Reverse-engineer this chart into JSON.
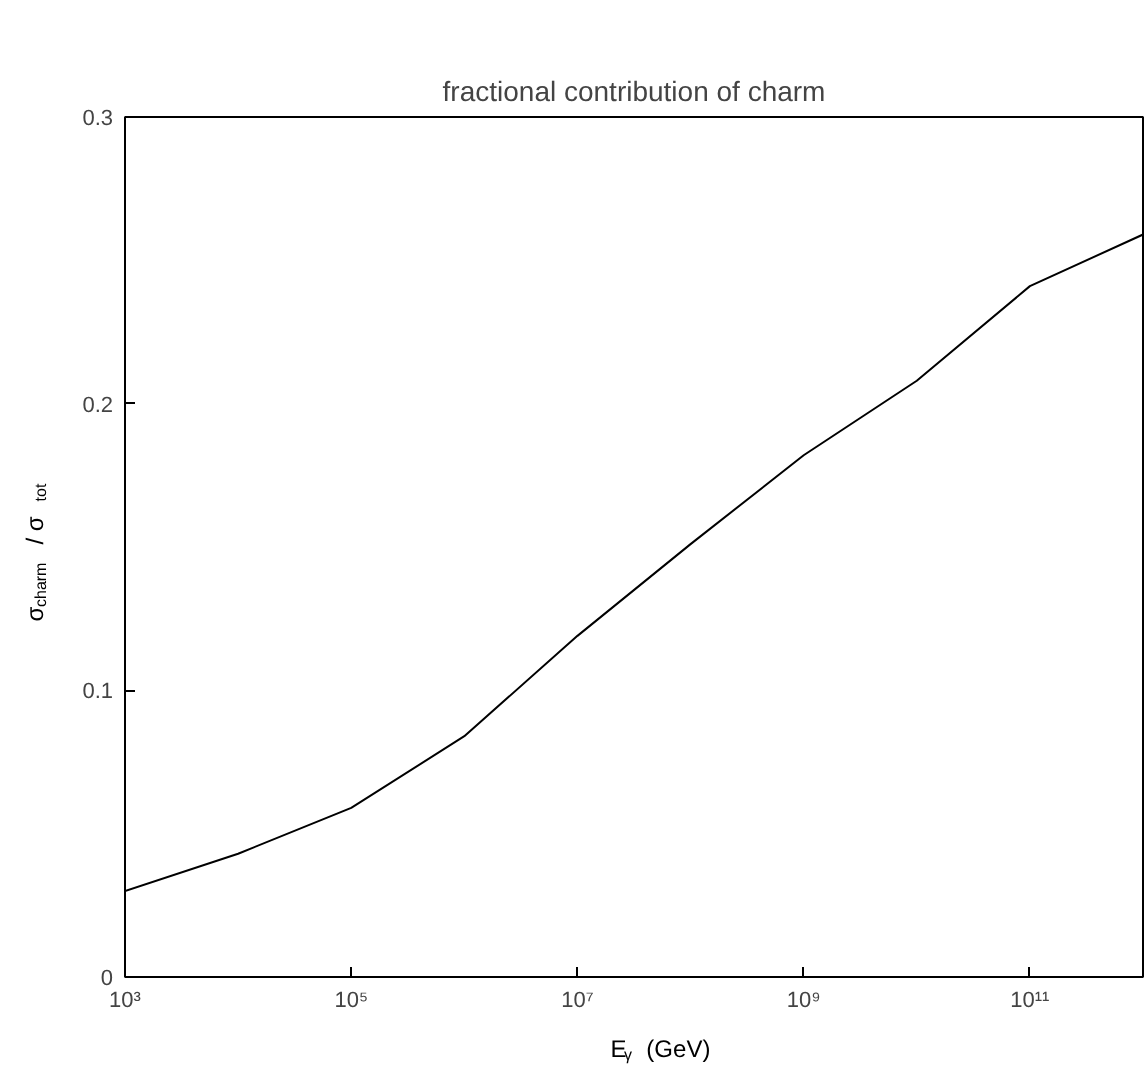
{
  "chart_data": {
    "type": "line",
    "title": "fractional contribution of charm",
    "xlabel": "E$_{γ}$ (GeV)",
    "ylabel": "σ$_{charm}$ / σ$_{tot}$",
    "log": "x",
    "grid": false,
    "legend": false,
    "marker": "none",
    "line_style": "solid",
    "x": [
      1000.0,
      10000.0,
      100000.0,
      1000000.0,
      10000000.0,
      100000000.0,
      1000000000.0,
      10000000000.0,
      100000000000.0,
      1000000000000.0
    ],
    "series": [
      {
        "color": "#000000",
        "values": [
          0.03,
          0.043,
          0.059,
          0.084,
          0.119,
          0.151,
          0.182,
          0.208,
          0.241,
          0.259
        ]
      }
    ],
    "xlim": [
      1000.0,
      1000000000000.0
    ],
    "xticks": [
      {
        "value": 1000.0,
        "label": "10³"
      },
      {
        "value": 100000.0,
        "label": "10⁵"
      },
      {
        "value": 10000000.0,
        "label": "10⁷"
      },
      {
        "value": 1000000000.0,
        "label": "10⁹"
      },
      {
        "value": 100000000000.0,
        "label": "10¹¹"
      }
    ],
    "ylim": [
      0,
      0.3
    ],
    "yticks": [
      0,
      0.1,
      0.2,
      0.3
    ]
  }
}
